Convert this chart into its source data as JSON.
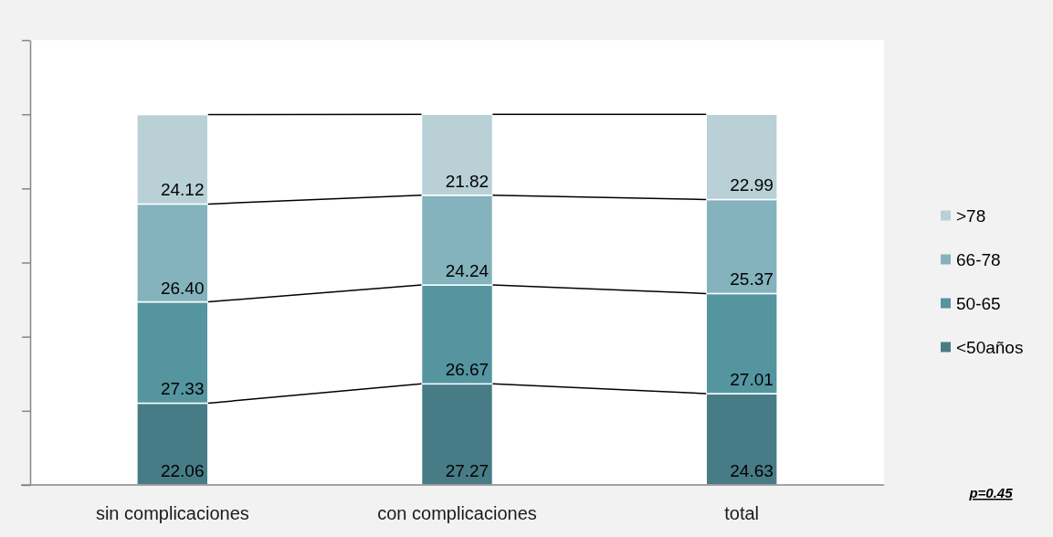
{
  "chart_data": {
    "type": "bar",
    "stacked": true,
    "categories": [
      "sin complicaciones",
      "con complicaciones",
      "total"
    ],
    "series": [
      {
        "name": "<50años",
        "color": "#477c86",
        "values": [
          22.06,
          27.27,
          24.63
        ],
        "value_labels": [
          "22.06",
          "27.27",
          "24.63"
        ]
      },
      {
        "name": "50-65",
        "color": "#5495a0",
        "values": [
          27.33,
          26.67,
          27.01
        ],
        "value_labels": [
          "27.33",
          "26.67",
          "27.01"
        ]
      },
      {
        "name": "66-78",
        "color": "#84b3bd",
        "values": [
          26.4,
          24.24,
          25.37
        ],
        "value_labels": [
          "26.40",
          "24.24",
          "25.37"
        ]
      },
      {
        "name": ">78",
        "color": "#b8d0d6",
        "values": [
          24.12,
          21.82,
          22.99
        ],
        "value_labels": [
          "24.12",
          "21.82",
          "22.99"
        ]
      }
    ],
    "ylim": [
      0,
      120
    ],
    "yticks": [
      {
        "value": 0,
        "label": null
      },
      {
        "value": 20,
        "label": null
      },
      {
        "value": 40,
        "label": null
      },
      {
        "value": 60,
        "label": null
      },
      {
        "value": 80,
        "label": null
      },
      {
        "value": 100,
        "label": null
      },
      {
        "value": 120,
        "label": null
      }
    ],
    "tick_labels": "x",
    "legend": "right",
    "annotations": [
      "p=0.45"
    ]
  }
}
